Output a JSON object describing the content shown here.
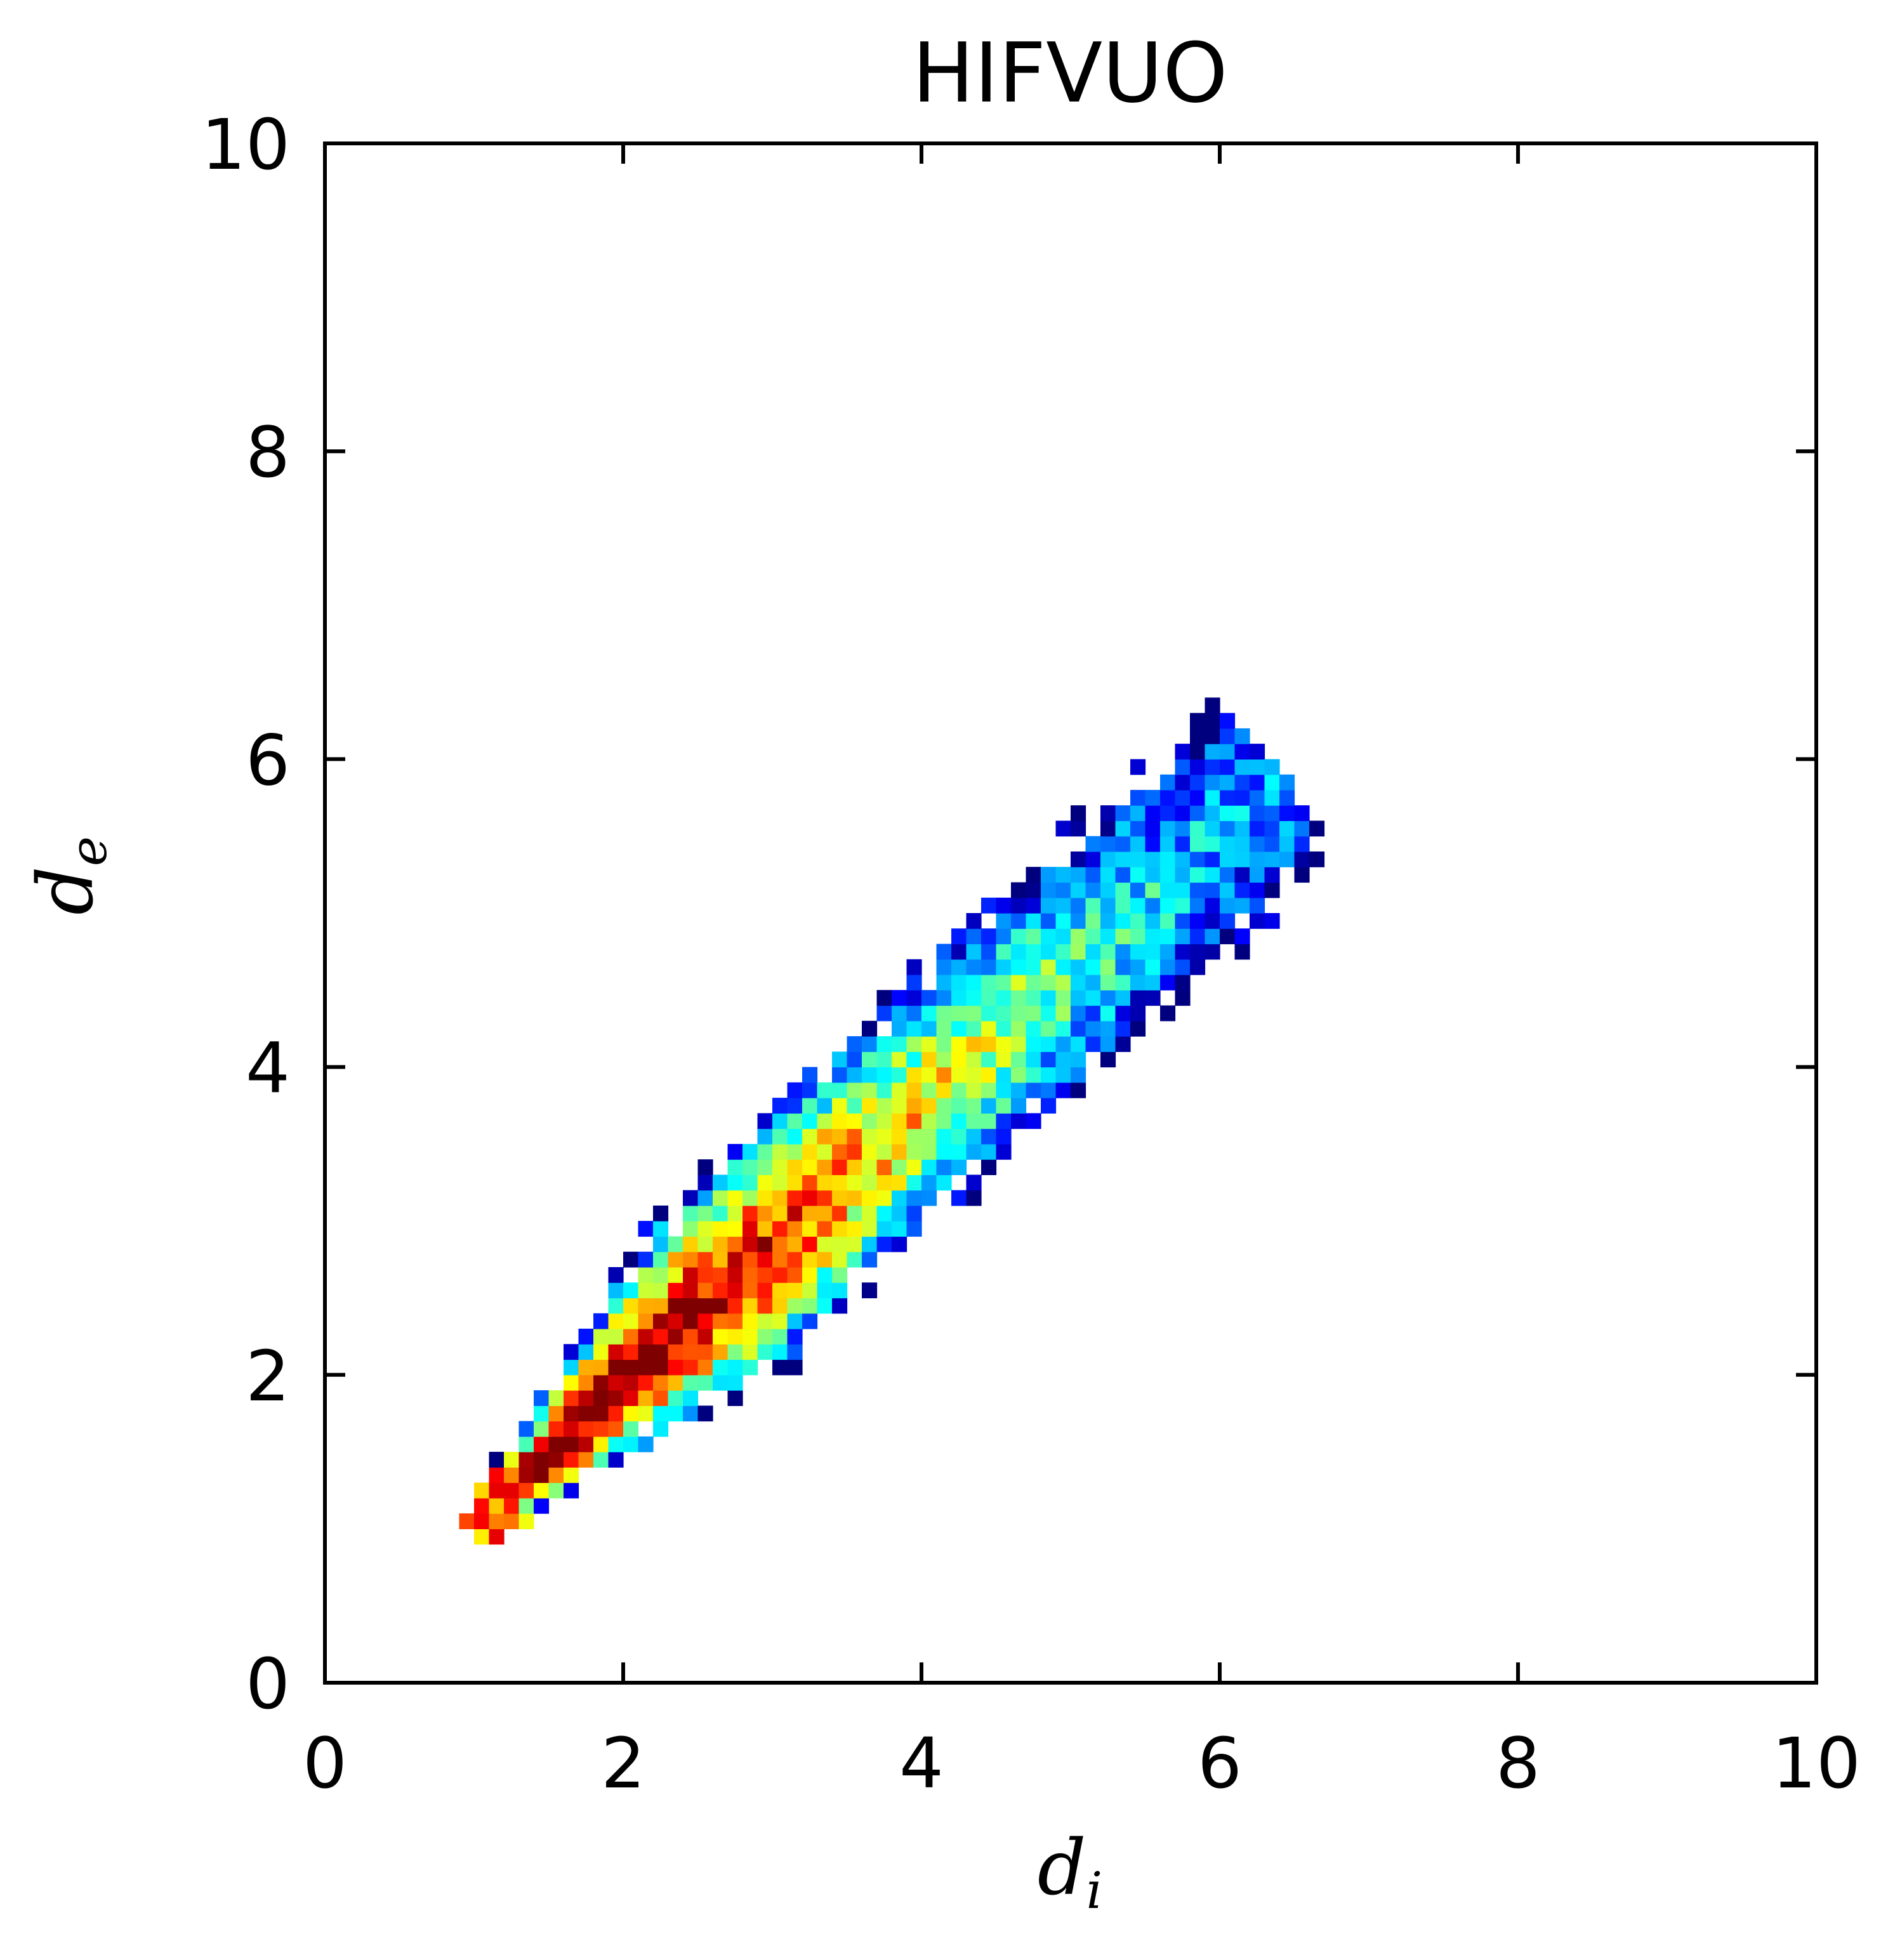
{
  "chart_data": {
    "type": "heatmap",
    "title": "HIFVUO",
    "xlabel": {
      "base": "d",
      "sub": "i"
    },
    "ylabel": {
      "base": "d",
      "sub": "e"
    },
    "xlim": [
      0,
      10
    ],
    "ylim": [
      0,
      10
    ],
    "xticks": [
      "0",
      "2",
      "4",
      "6",
      "8",
      "10"
    ],
    "yticks": [
      "0",
      "2",
      "4",
      "6",
      "8",
      "10"
    ],
    "grid": false,
    "colormap": "jet",
    "colormap_stops": [
      "#00007f",
      "#0000ff",
      "#00a0ff",
      "#00ffff",
      "#80ff80",
      "#ffff00",
      "#ff8000",
      "#ff0000",
      "#7f0000"
    ],
    "bin_size": 0.1,
    "distribution": {
      "ridge_start": [
        1.0,
        1.0
      ],
      "ridge_end": [
        6.3,
        5.8
      ],
      "peak_at": [
        1.8,
        1.9
      ],
      "shape": "narrow diagonal band widening to x≈2–6, densest near x 1.5–2.5, fading to sparse blue fringes at edges"
    }
  }
}
